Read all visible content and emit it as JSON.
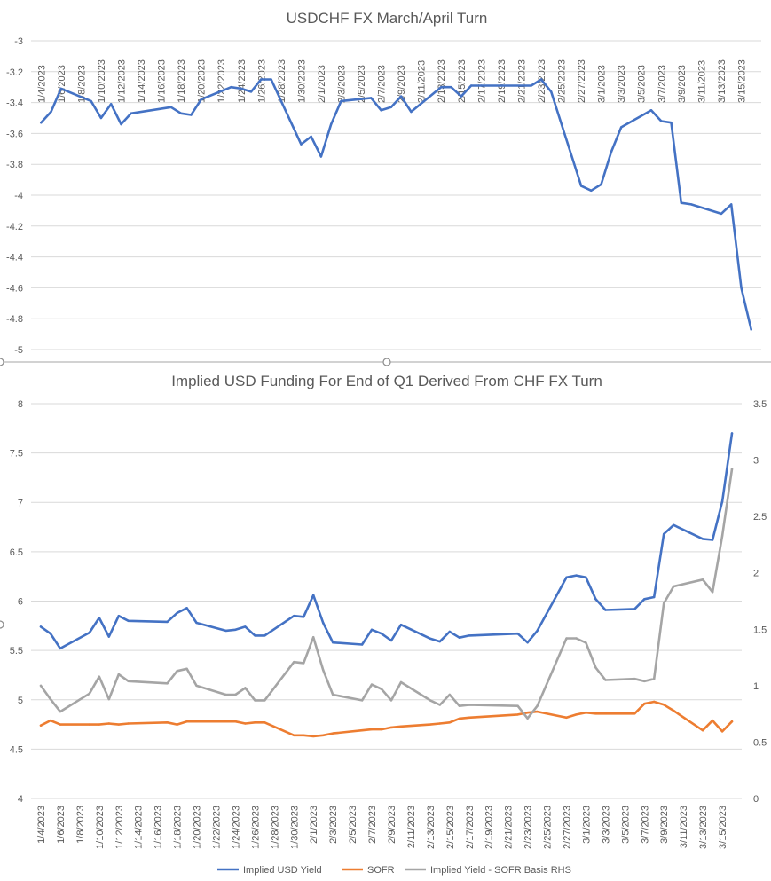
{
  "chart_data": [
    {
      "type": "line",
      "title": "USDCHF FX March/April Turn",
      "xlabel": "",
      "ylabel": "",
      "ylim": [
        -5,
        -3
      ],
      "y_ticks": [
        "-3",
        "-3.2",
        "-3.4",
        "-3.6",
        "-3.8",
        "-4",
        "-4.2",
        "-4.4",
        "-4.6",
        "-4.8",
        "-5"
      ],
      "x_range": [
        "1/3/2023",
        "3/17/2023"
      ],
      "x_tick_labels": [
        "1/4/2023",
        "1/6/2023",
        "1/8/2023",
        "1/10/2023",
        "1/12/2023",
        "1/14/2023",
        "1/16/2023",
        "1/18/2023",
        "1/20/2023",
        "1/22/2023",
        "1/24/2023",
        "1/26/2023",
        "1/28/2023",
        "1/30/2023",
        "2/1/2023",
        "2/3/2023",
        "2/5/2023",
        "2/7/2023",
        "2/9/2023",
        "2/11/2023",
        "2/13/2023",
        "2/15/2023",
        "2/17/2023",
        "2/19/2023",
        "2/21/2023",
        "2/23/2023",
        "2/25/2023",
        "2/27/2023",
        "3/1/2023",
        "3/3/2023",
        "3/5/2023",
        "3/7/2023",
        "3/9/2023",
        "3/11/2023",
        "3/13/2023",
        "3/15/2023"
      ],
      "grid": true,
      "series": [
        {
          "name": "",
          "color": "#4472c4",
          "x": [
            "1/4/2023",
            "1/5/2023",
            "1/6/2023",
            "1/9/2023",
            "1/10/2023",
            "1/11/2023",
            "1/12/2023",
            "1/13/2023",
            "1/17/2023",
            "1/18/2023",
            "1/19/2023",
            "1/20/2023",
            "1/23/2023",
            "1/24/2023",
            "1/25/2023",
            "1/26/2023",
            "1/27/2023",
            "1/30/2023",
            "1/31/2023",
            "2/1/2023",
            "2/2/2023",
            "2/3/2023",
            "2/6/2023",
            "2/7/2023",
            "2/8/2023",
            "2/9/2023",
            "2/10/2023",
            "2/13/2023",
            "2/14/2023",
            "2/15/2023",
            "2/16/2023",
            "2/17/2023",
            "2/22/2023",
            "2/23/2023",
            "2/24/2023",
            "2/27/2023",
            "2/28/2023",
            "3/1/2023",
            "3/2/2023",
            "3/3/2023",
            "3/6/2023",
            "3/7/2023",
            "3/8/2023",
            "3/9/2023",
            "3/10/2023",
            "3/13/2023",
            "3/14/2023",
            "3/15/2023",
            "3/16/2023"
          ],
          "values": [
            -3.53,
            -3.46,
            -3.31,
            -3.39,
            -3.5,
            -3.41,
            -3.54,
            -3.47,
            -3.43,
            -3.47,
            -3.48,
            -3.38,
            -3.3,
            -3.31,
            -3.33,
            -3.25,
            -3.25,
            -3.67,
            -3.62,
            -3.75,
            -3.54,
            -3.39,
            -3.37,
            -3.45,
            -3.43,
            -3.36,
            -3.46,
            -3.3,
            -3.3,
            -3.36,
            -3.29,
            -3.29,
            -3.29,
            -3.25,
            -3.33,
            -3.94,
            -3.97,
            -3.93,
            -3.72,
            -3.56,
            -3.45,
            -3.52,
            -3.53,
            -4.05,
            -4.06,
            -4.12,
            -4.06,
            -4.6,
            -4.87
          ]
        }
      ]
    },
    {
      "type": "line",
      "title": "Implied USD Funding For End of Q1 Derived From CHF FX Turn",
      "xlabel": "",
      "ylabel": "",
      "ylim": [
        4,
        8
      ],
      "y2lim": [
        0,
        3.5
      ],
      "y_ticks": [
        "8",
        "7.5",
        "7",
        "6.5",
        "6",
        "5.5",
        "5",
        "4.5",
        "4"
      ],
      "y2_ticks": [
        "3.5",
        "3",
        "2.5",
        "2",
        "1.5",
        "1",
        "0.5",
        "0"
      ],
      "x_range": [
        "1/3/2023",
        "3/17/2023"
      ],
      "x_tick_labels": [
        "1/4/2023",
        "1/6/2023",
        "1/8/2023",
        "1/10/2023",
        "1/12/2023",
        "1/14/2023",
        "1/16/2023",
        "1/18/2023",
        "1/20/2023",
        "1/22/2023",
        "1/24/2023",
        "1/26/2023",
        "1/28/2023",
        "1/30/2023",
        "2/1/2023",
        "2/3/2023",
        "2/5/2023",
        "2/7/2023",
        "2/9/2023",
        "2/11/2023",
        "2/13/2023",
        "2/15/2023",
        "2/17/2023",
        "2/19/2023",
        "2/21/2023",
        "2/23/2023",
        "2/25/2023",
        "2/27/2023",
        "3/1/2023",
        "3/3/2023",
        "3/5/2023",
        "3/7/2023",
        "3/9/2023",
        "3/11/2023",
        "3/13/2023",
        "3/15/2023"
      ],
      "grid": true,
      "legend_position": "bottom",
      "series": [
        {
          "name": "Implied USD Yield",
          "axis": "left",
          "color": "#4472c4",
          "x": [
            "1/4/2023",
            "1/5/2023",
            "1/6/2023",
            "1/9/2023",
            "1/10/2023",
            "1/11/2023",
            "1/12/2023",
            "1/13/2023",
            "1/17/2023",
            "1/18/2023",
            "1/19/2023",
            "1/20/2023",
            "1/23/2023",
            "1/24/2023",
            "1/25/2023",
            "1/26/2023",
            "1/27/2023",
            "1/30/2023",
            "1/31/2023",
            "2/1/2023",
            "2/2/2023",
            "2/3/2023",
            "2/6/2023",
            "2/7/2023",
            "2/8/2023",
            "2/9/2023",
            "2/10/2023",
            "2/13/2023",
            "2/14/2023",
            "2/15/2023",
            "2/16/2023",
            "2/17/2023",
            "2/22/2023",
            "2/23/2023",
            "2/24/2023",
            "2/27/2023",
            "2/28/2023",
            "3/1/2023",
            "3/2/2023",
            "3/3/2023",
            "3/6/2023",
            "3/7/2023",
            "3/8/2023",
            "3/9/2023",
            "3/10/2023",
            "3/13/2023",
            "3/14/2023",
            "3/15/2023",
            "3/16/2023"
          ],
          "values": [
            5.74,
            5.67,
            5.52,
            5.68,
            5.83,
            5.64,
            5.85,
            5.8,
            5.79,
            5.88,
            5.93,
            5.78,
            5.7,
            5.71,
            5.74,
            5.65,
            5.65,
            5.85,
            5.84,
            6.06,
            5.78,
            5.58,
            5.56,
            5.71,
            5.67,
            5.6,
            5.76,
            5.62,
            5.59,
            5.69,
            5.63,
            5.65,
            5.67,
            5.58,
            5.7,
            6.24,
            6.26,
            6.24,
            6.02,
            5.91,
            5.92,
            6.02,
            6.04,
            6.68,
            6.77,
            6.63,
            6.62,
            7.01,
            7.7
          ]
        },
        {
          "name": "SOFR",
          "axis": "left",
          "color": "#ed7d31",
          "x": [
            "1/4/2023",
            "1/5/2023",
            "1/6/2023",
            "1/9/2023",
            "1/10/2023",
            "1/11/2023",
            "1/12/2023",
            "1/13/2023",
            "1/17/2023",
            "1/18/2023",
            "1/19/2023",
            "1/20/2023",
            "1/23/2023",
            "1/24/2023",
            "1/25/2023",
            "1/26/2023",
            "1/27/2023",
            "1/30/2023",
            "1/31/2023",
            "2/1/2023",
            "2/2/2023",
            "2/3/2023",
            "2/6/2023",
            "2/7/2023",
            "2/8/2023",
            "2/9/2023",
            "2/10/2023",
            "2/13/2023",
            "2/14/2023",
            "2/15/2023",
            "2/16/2023",
            "2/17/2023",
            "2/22/2023",
            "2/23/2023",
            "2/24/2023",
            "2/27/2023",
            "2/28/2023",
            "3/1/2023",
            "3/2/2023",
            "3/3/2023",
            "3/6/2023",
            "3/7/2023",
            "3/8/2023",
            "3/9/2023",
            "3/10/2023",
            "3/13/2023",
            "3/14/2023",
            "3/15/2023",
            "3/16/2023"
          ],
          "values": [
            4.74,
            4.79,
            4.75,
            4.75,
            4.75,
            4.76,
            4.75,
            4.76,
            4.77,
            4.75,
            4.78,
            4.78,
            4.78,
            4.78,
            4.76,
            4.77,
            4.77,
            4.64,
            4.64,
            4.63,
            4.64,
            4.66,
            4.69,
            4.7,
            4.7,
            4.72,
            4.73,
            4.75,
            4.76,
            4.77,
            4.81,
            4.82,
            4.85,
            4.87,
            4.88,
            4.82,
            4.85,
            4.87,
            4.86,
            4.86,
            4.86,
            4.96,
            4.98,
            4.95,
            4.89,
            4.69,
            4.79,
            4.68,
            4.78
          ]
        },
        {
          "name": "Implied Yield - SOFR Basis RHS",
          "axis": "right",
          "color": "#a5a5a5",
          "x": [
            "1/4/2023",
            "1/5/2023",
            "1/6/2023",
            "1/9/2023",
            "1/10/2023",
            "1/11/2023",
            "1/12/2023",
            "1/13/2023",
            "1/17/2023",
            "1/18/2023",
            "1/19/2023",
            "1/20/2023",
            "1/23/2023",
            "1/24/2023",
            "1/25/2023",
            "1/26/2023",
            "1/27/2023",
            "1/30/2023",
            "1/31/2023",
            "2/1/2023",
            "2/2/2023",
            "2/3/2023",
            "2/6/2023",
            "2/7/2023",
            "2/8/2023",
            "2/9/2023",
            "2/10/2023",
            "2/13/2023",
            "2/14/2023",
            "2/15/2023",
            "2/16/2023",
            "2/17/2023",
            "2/22/2023",
            "2/23/2023",
            "2/24/2023",
            "2/27/2023",
            "2/28/2023",
            "3/1/2023",
            "3/2/2023",
            "3/3/2023",
            "3/6/2023",
            "3/7/2023",
            "3/8/2023",
            "3/9/2023",
            "3/10/2023",
            "3/13/2023",
            "3/14/2023",
            "3/15/2023",
            "3/16/2023"
          ],
          "values": [
            1.0,
            0.88,
            0.77,
            0.93,
            1.08,
            0.88,
            1.1,
            1.04,
            1.02,
            1.13,
            1.15,
            1.0,
            0.92,
            0.92,
            0.98,
            0.87,
            0.87,
            1.21,
            1.2,
            1.43,
            1.14,
            0.92,
            0.87,
            1.01,
            0.97,
            0.87,
            1.03,
            0.87,
            0.83,
            0.92,
            0.82,
            0.83,
            0.82,
            0.71,
            0.82,
            1.42,
            1.42,
            1.38,
            1.16,
            1.05,
            1.06,
            1.04,
            1.06,
            1.73,
            1.88,
            1.94,
            1.83,
            2.33,
            2.92
          ]
        }
      ]
    }
  ]
}
